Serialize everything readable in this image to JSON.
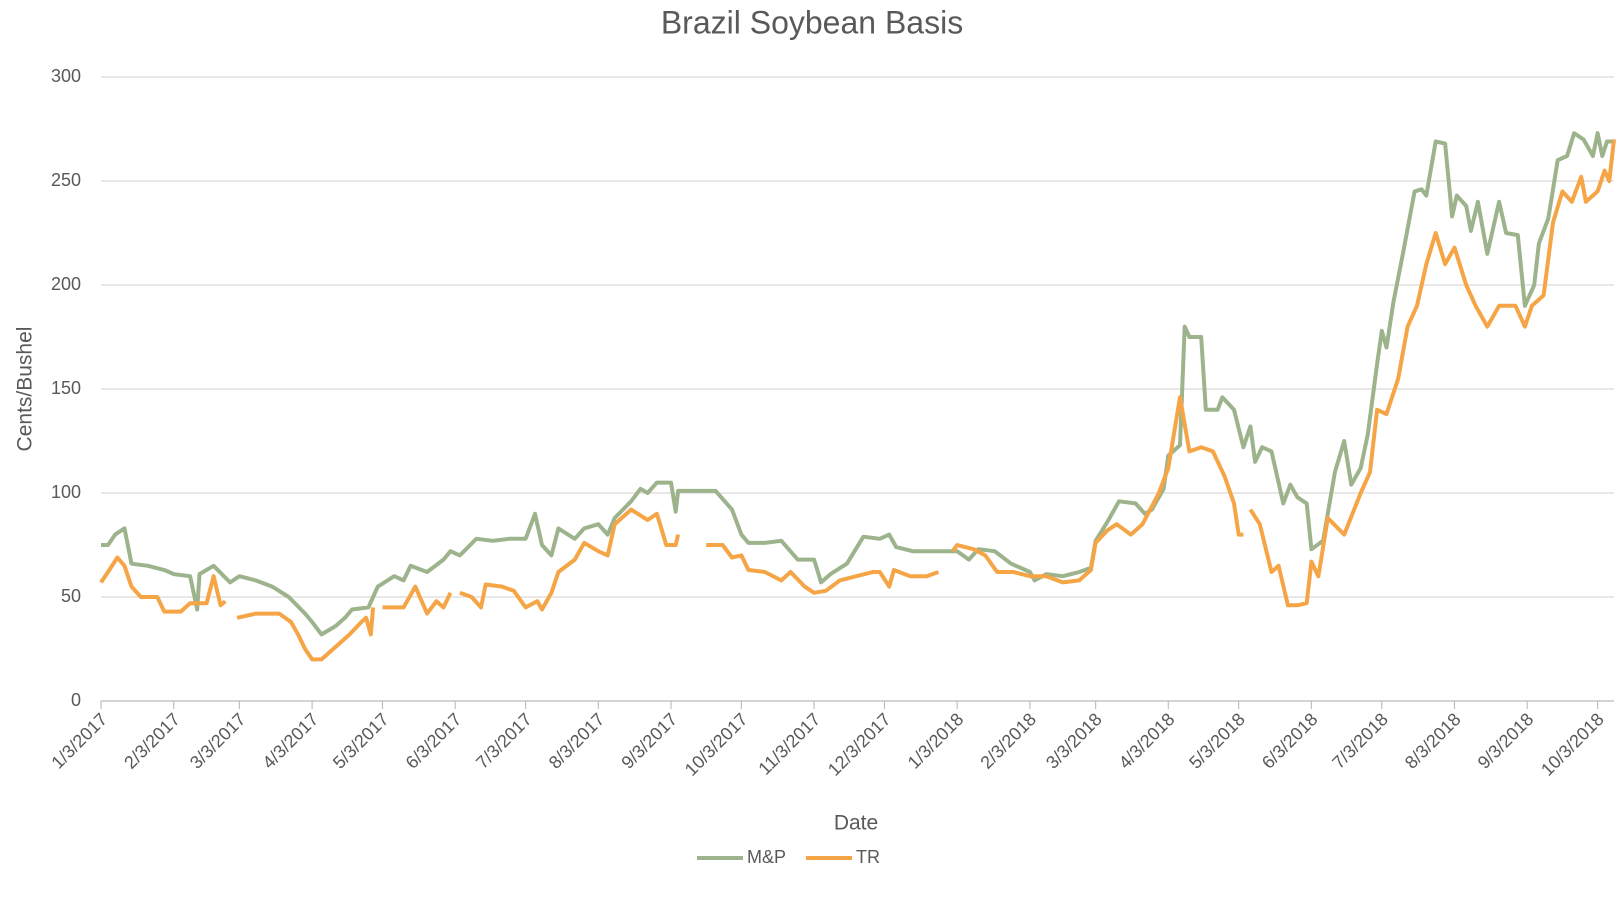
{
  "chart_data": {
    "type": "line",
    "title": "Brazil Soybean Basis",
    "x_label": "Date",
    "y_label": "Cents/Bushel",
    "xlim": [
      "2017-01-03",
      "2018-10-10"
    ],
    "xticks": [
      {
        "value": "2017-01-03",
        "label": "1/3/2017"
      },
      {
        "value": "2017-02-03",
        "label": "2/3/2017"
      },
      {
        "value": "2017-03-03",
        "label": "3/3/2017"
      },
      {
        "value": "2017-04-03",
        "label": "4/3/2017"
      },
      {
        "value": "2017-05-03",
        "label": "5/3/2017"
      },
      {
        "value": "2017-06-03",
        "label": "6/3/2017"
      },
      {
        "value": "2017-07-03",
        "label": "7/3/2017"
      },
      {
        "value": "2017-08-03",
        "label": "8/3/2017"
      },
      {
        "value": "2017-09-03",
        "label": "9/3/2017"
      },
      {
        "value": "2017-10-03",
        "label": "10/3/2017"
      },
      {
        "value": "2017-11-03",
        "label": "11/3/2017"
      },
      {
        "value": "2017-12-03",
        "label": "12/3/2017"
      },
      {
        "value": "2018-01-03",
        "label": "1/3/2018"
      },
      {
        "value": "2018-02-03",
        "label": "2/3/2018"
      },
      {
        "value": "2018-03-03",
        "label": "3/3/2018"
      },
      {
        "value": "2018-04-03",
        "label": "4/3/2018"
      },
      {
        "value": "2018-05-03",
        "label": "5/3/2018"
      },
      {
        "value": "2018-06-03",
        "label": "6/3/2018"
      },
      {
        "value": "2018-07-03",
        "label": "7/3/2018"
      },
      {
        "value": "2018-08-03",
        "label": "8/3/2018"
      },
      {
        "value": "2018-09-03",
        "label": "9/3/2018"
      },
      {
        "value": "2018-10-03",
        "label": "10/3/2018"
      }
    ],
    "ylim": [
      0,
      300
    ],
    "yticks": [
      0,
      50,
      100,
      150,
      200,
      250,
      300
    ],
    "grid": true,
    "legend": "bottom",
    "series": [
      {
        "name": "M&P",
        "color": "#9db38c",
        "x": [
          "2017-01-03",
          "2017-01-06",
          "2017-01-09",
          "2017-01-13",
          "2017-01-16",
          "2017-01-23",
          "2017-01-30",
          "2017-02-03",
          "2017-02-10",
          "2017-02-13",
          "2017-02-14",
          "2017-02-20",
          "2017-02-27",
          "2017-03-03",
          "2017-03-10",
          "2017-03-17",
          "2017-03-24",
          "2017-03-31",
          "2017-04-03",
          "2017-04-07",
          "2017-04-13",
          "2017-04-17",
          "2017-04-20",
          "2017-04-27",
          "2017-05-01",
          "2017-05-08",
          "2017-05-12",
          "2017-05-15",
          "2017-05-22",
          "2017-05-29",
          "2017-06-01",
          "2017-06-05",
          "2017-06-12",
          "2017-06-19",
          "2017-06-26",
          "2017-07-03",
          "2017-07-07",
          "2017-07-10",
          "2017-07-14",
          "2017-07-17",
          "2017-07-24",
          "2017-07-28",
          "2017-08-03",
          "2017-08-07",
          "2017-08-10",
          "2017-08-17",
          "2017-08-21",
          "2017-08-24",
          "2017-08-28",
          "2017-09-03",
          "2017-09-05",
          "2017-09-06",
          "2017-09-15",
          "2017-09-22",
          "2017-09-29",
          "2017-10-03",
          "2017-10-06",
          "2017-10-13",
          "2017-10-20",
          "2017-10-27",
          "2017-11-03",
          "2017-11-06",
          "2017-11-10",
          "2017-11-17",
          "2017-11-24",
          "2017-12-01",
          "2017-12-05",
          "2017-12-08",
          "2017-12-15",
          "2017-12-22",
          "2017-12-29",
          "2018-01-03",
          "2018-01-08",
          "2018-01-12",
          "2018-01-19",
          "2018-01-26",
          "2018-02-03",
          "2018-02-05",
          "2018-02-10",
          "2018-02-17",
          "2018-02-24",
          "2018-03-01",
          "2018-03-03",
          "2018-03-08",
          "2018-03-13",
          "2018-03-20",
          "2018-03-24",
          "2018-03-27",
          "2018-04-01",
          "2018-04-03",
          "2018-04-08",
          "2018-04-10",
          "2018-04-12",
          "2018-04-17",
          "2018-04-19",
          "2018-04-24",
          "2018-04-26",
          "2018-05-01",
          "2018-05-05",
          "2018-05-08",
          "2018-05-10",
          "2018-05-13",
          "2018-05-17",
          "2018-05-22",
          "2018-05-25",
          "2018-05-28",
          "2018-06-01",
          "2018-06-03",
          "2018-06-08",
          "2018-06-13",
          "2018-06-17",
          "2018-06-20",
          "2018-06-24",
          "2018-06-27",
          "2018-07-01",
          "2018-07-03",
          "2018-07-05",
          "2018-07-08",
          "2018-07-12",
          "2018-07-17",
          "2018-07-20",
          "2018-07-22",
          "2018-07-26",
          "2018-07-30",
          "2018-08-02",
          "2018-08-04",
          "2018-08-08",
          "2018-08-10",
          "2018-08-13",
          "2018-08-17",
          "2018-08-22",
          "2018-08-25",
          "2018-08-30",
          "2018-09-02",
          "2018-09-06",
          "2018-09-08",
          "2018-09-12",
          "2018-09-16",
          "2018-09-20",
          "2018-09-23",
          "2018-09-27",
          "2018-10-01",
          "2018-10-03",
          "2018-10-05",
          "2018-10-07",
          "2018-10-10"
        ],
        "values": [
          75,
          75,
          80,
          83,
          66,
          65,
          63,
          61,
          60,
          44,
          61,
          65,
          57,
          60,
          58,
          55,
          50,
          42,
          38,
          32,
          36,
          40,
          44,
          45,
          55,
          60,
          58,
          65,
          62,
          68,
          72,
          70,
          78,
          77,
          78,
          78,
          90,
          75,
          70,
          83,
          78,
          83,
          85,
          80,
          88,
          96,
          102,
          100,
          105,
          105,
          91,
          101,
          101,
          101,
          92,
          80,
          76,
          76,
          77,
          68,
          68,
          57,
          61,
          66,
          79,
          78,
          80,
          74,
          72,
          72,
          72,
          72,
          68,
          73,
          72,
          66,
          62,
          58,
          61,
          60,
          62,
          64,
          77,
          86,
          96,
          95,
          90,
          92,
          102,
          118,
          123,
          180,
          175,
          175,
          140,
          140,
          146,
          140,
          122,
          132,
          115,
          122,
          120,
          95,
          104,
          98,
          95,
          73,
          77,
          110,
          125,
          104,
          112,
          128,
          162,
          178,
          170,
          192,
          215,
          245,
          246,
          243,
          269,
          268,
          233,
          243,
          238,
          226,
          240,
          215,
          240,
          225,
          224,
          190,
          200,
          220,
          232,
          260,
          262,
          273,
          270,
          262,
          273,
          262,
          269,
          269
        ]
      },
      {
        "name": "TR",
        "color": "#f5a545",
        "x": [
          "2017-01-03",
          "2017-01-06",
          "2017-01-10",
          "2017-01-13",
          "2017-01-16",
          "2017-01-20",
          "2017-01-27",
          "2017-01-30",
          "2017-02-06",
          "2017-02-10",
          "2017-02-17",
          "2017-02-20",
          "2017-02-23",
          "2017-02-25",
          "2017-02-27",
          "2017-03-02",
          "2017-03-10",
          "2017-03-20",
          "2017-03-25",
          "2017-03-28",
          "2017-03-31",
          "2017-04-03",
          "2017-04-07",
          "2017-04-12",
          "2017-04-19",
          "2017-04-24",
          "2017-04-26",
          "2017-04-28",
          "2017-04-29",
          "2017-04-30",
          "2017-05-03",
          "2017-05-12",
          "2017-05-17",
          "2017-05-22",
          "2017-05-26",
          "2017-05-29",
          "2017-06-01",
          "2017-06-02",
          "2017-06-05",
          "2017-06-10",
          "2017-06-14",
          "2017-06-16",
          "2017-06-23",
          "2017-06-28",
          "2017-07-03",
          "2017-07-08",
          "2017-07-10",
          "2017-07-14",
          "2017-07-17",
          "2017-07-24",
          "2017-07-28",
          "2017-08-03",
          "2017-08-07",
          "2017-08-10",
          "2017-08-17",
          "2017-08-24",
          "2017-08-28",
          "2017-09-01",
          "2017-09-05",
          "2017-09-06",
          "2017-09-07",
          "2017-09-18",
          "2017-09-25",
          "2017-09-29",
          "2017-10-03",
          "2017-10-06",
          "2017-10-13",
          "2017-10-20",
          "2017-10-24",
          "2017-10-30",
          "2017-11-03",
          "2017-11-08",
          "2017-11-14",
          "2017-11-21",
          "2017-11-28",
          "2017-12-01",
          "2017-12-05",
          "2017-12-07",
          "2017-12-14",
          "2017-12-21",
          "2017-12-26",
          "2017-12-28",
          "2018-01-01",
          "2018-01-03",
          "2018-01-10",
          "2018-01-15",
          "2018-01-20",
          "2018-01-27",
          "2018-02-03",
          "2018-02-10",
          "2018-02-17",
          "2018-02-24",
          "2018-03-01",
          "2018-03-03",
          "2018-03-08",
          "2018-03-12",
          "2018-03-18",
          "2018-03-23",
          "2018-03-30",
          "2018-04-03",
          "2018-04-08",
          "2018-04-12",
          "2018-04-17",
          "2018-04-22",
          "2018-04-27",
          "2018-05-01",
          "2018-05-03",
          "2018-05-05",
          "2018-05-06",
          "2018-05-08",
          "2018-05-12",
          "2018-05-17",
          "2018-05-20",
          "2018-05-24",
          "2018-05-28",
          "2018-06-01",
          "2018-06-03",
          "2018-06-06",
          "2018-06-10",
          "2018-06-17",
          "2018-06-24",
          "2018-06-28",
          "2018-07-01",
          "2018-07-05",
          "2018-07-10",
          "2018-07-14",
          "2018-07-18",
          "2018-07-22",
          "2018-07-26",
          "2018-07-30",
          "2018-08-03",
          "2018-08-08",
          "2018-08-12",
          "2018-08-17",
          "2018-08-22",
          "2018-08-29",
          "2018-09-02",
          "2018-09-05",
          "2018-09-10",
          "2018-09-14",
          "2018-09-18",
          "2018-09-22",
          "2018-09-26",
          "2018-09-28",
          "2018-10-03",
          "2018-10-06",
          "2018-10-08",
          "2018-10-10"
        ],
        "values": [
          57,
          62,
          69,
          65,
          55,
          50,
          50,
          43,
          43,
          47,
          47,
          60,
          46,
          48,
          null,
          40,
          42,
          42,
          38,
          32,
          25,
          20,
          20,
          25,
          32,
          38,
          40,
          32,
          45,
          null,
          45,
          45,
          55,
          42,
          48,
          45,
          52,
          null,
          52,
          50,
          45,
          56,
          55,
          53,
          45,
          48,
          44,
          52,
          62,
          68,
          76,
          72,
          70,
          85,
          92,
          87,
          90,
          75,
          75,
          80,
          null,
          75,
          75,
          69,
          70,
          63,
          62,
          58,
          62,
          55,
          52,
          53,
          58,
          60,
          62,
          62,
          55,
          63,
          60,
          60,
          62,
          null,
          72,
          75,
          73,
          70,
          62,
          62,
          60,
          60,
          57,
          58,
          63,
          76,
          82,
          85,
          80,
          85,
          100,
          112,
          146,
          120,
          122,
          120,
          108,
          95,
          80,
          80,
          null,
          92,
          85,
          62,
          65,
          46,
          46,
          47,
          67,
          60,
          88,
          80,
          100,
          110,
          140,
          138,
          155,
          180,
          190,
          210,
          225,
          210,
          218,
          200,
          190,
          180,
          190,
          190,
          180,
          190,
          195,
          230,
          245,
          240,
          252,
          240,
          245,
          255,
          250,
          270
        ]
      }
    ]
  }
}
